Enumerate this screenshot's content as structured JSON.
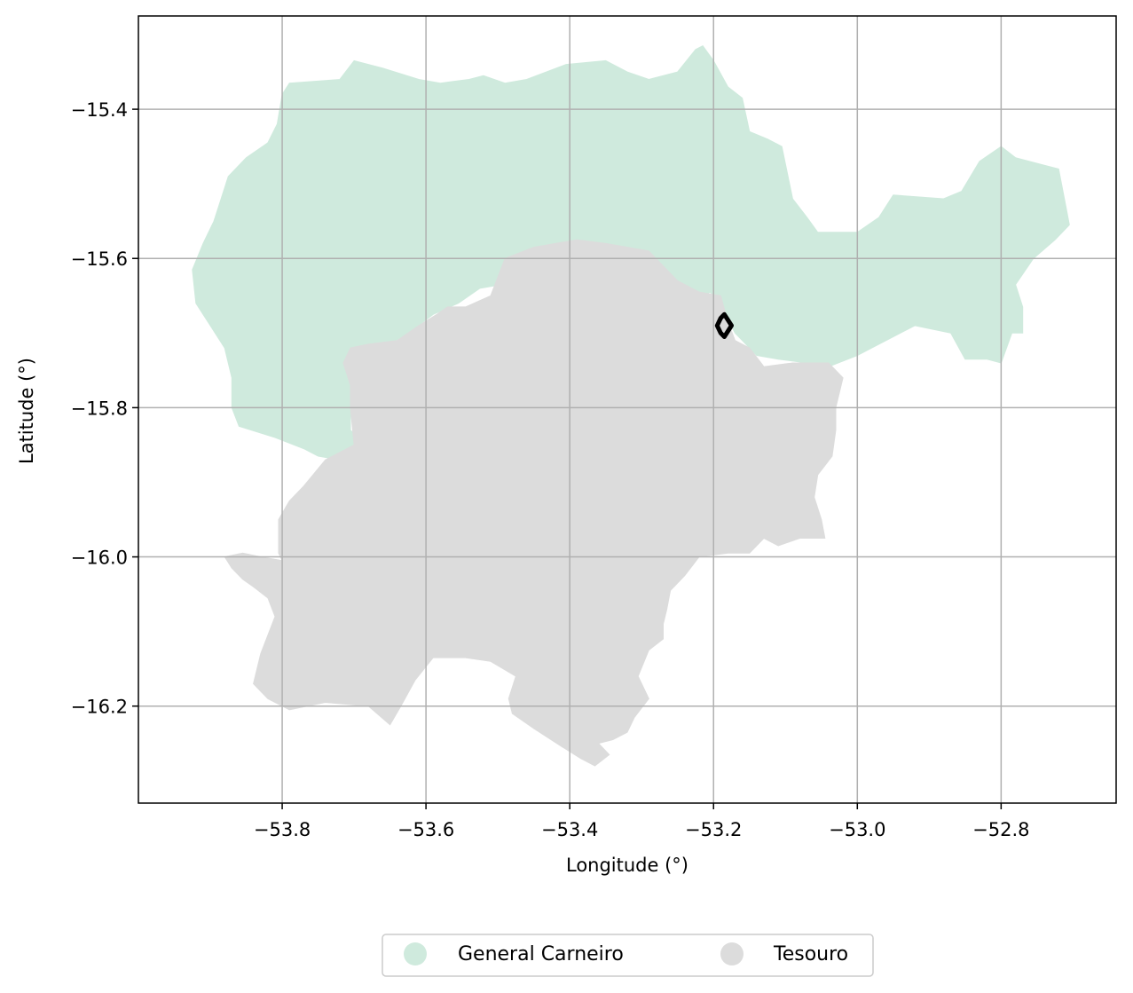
{
  "chart_data": {
    "type": "map",
    "xlabel": "Longitude (°)",
    "ylabel": "Latitude (°)",
    "xlim": [
      -54.0,
      -52.64
    ],
    "ylim": [
      -16.33,
      -15.275
    ],
    "xticks": [
      -53.8,
      -53.6,
      -53.4,
      -53.2,
      -53.0,
      -52.8
    ],
    "xtick_labels": [
      "−53.8",
      "−53.6",
      "−53.4",
      "−53.2",
      "−53.0",
      "−52.8"
    ],
    "yticks": [
      -15.4,
      -15.6,
      -15.8,
      -16.0,
      -16.2
    ],
    "ytick_labels": [
      "−15.4",
      "−15.6",
      "−15.8",
      "−16.0",
      "−16.2"
    ],
    "grid": true,
    "legend_position": "bottom-center",
    "regions": [
      {
        "name": "General Carneiro",
        "color": "#cfeadd",
        "outline": [
          [
            -53.875,
            -15.49
          ],
          [
            -53.85,
            -15.465
          ],
          [
            -53.82,
            -15.445
          ],
          [
            -53.807,
            -15.42
          ],
          [
            -53.8,
            -15.38
          ],
          [
            -53.79,
            -15.365
          ],
          [
            -53.72,
            -15.36
          ],
          [
            -53.7,
            -15.335
          ],
          [
            -53.66,
            -15.345
          ],
          [
            -53.61,
            -15.36
          ],
          [
            -53.58,
            -15.365
          ],
          [
            -53.54,
            -15.36
          ],
          [
            -53.52,
            -15.355
          ],
          [
            -53.49,
            -15.365
          ],
          [
            -53.46,
            -15.36
          ],
          [
            -53.405,
            -15.34
          ],
          [
            -53.35,
            -15.335
          ],
          [
            -53.32,
            -15.35
          ],
          [
            -53.29,
            -15.36
          ],
          [
            -53.25,
            -15.35
          ],
          [
            -53.225,
            -15.32
          ],
          [
            -53.215,
            -15.315
          ],
          [
            -53.2,
            -15.335
          ],
          [
            -53.18,
            -15.37
          ],
          [
            -53.16,
            -15.385
          ],
          [
            -53.15,
            -15.43
          ],
          [
            -53.125,
            -15.44
          ],
          [
            -53.105,
            -15.45
          ],
          [
            -53.09,
            -15.52
          ],
          [
            -53.07,
            -15.545
          ],
          [
            -53.055,
            -15.565
          ],
          [
            -53.0,
            -15.565
          ],
          [
            -52.97,
            -15.545
          ],
          [
            -52.95,
            -15.515
          ],
          [
            -52.88,
            -15.52
          ],
          [
            -52.855,
            -15.51
          ],
          [
            -52.83,
            -15.47
          ],
          [
            -52.8,
            -15.45
          ],
          [
            -52.78,
            -15.465
          ],
          [
            -52.74,
            -15.475
          ],
          [
            -52.72,
            -15.48
          ],
          [
            -52.71,
            -15.53
          ],
          [
            -52.705,
            -15.555
          ],
          [
            -52.725,
            -15.575
          ],
          [
            -52.755,
            -15.6
          ],
          [
            -52.78,
            -15.635
          ],
          [
            -52.77,
            -15.665
          ],
          [
            -52.77,
            -15.7
          ],
          [
            -52.785,
            -15.7
          ],
          [
            -52.8,
            -15.74
          ],
          [
            -52.82,
            -15.735
          ],
          [
            -52.85,
            -15.735
          ],
          [
            -52.87,
            -15.7
          ],
          [
            -52.92,
            -15.69
          ],
          [
            -52.96,
            -15.71
          ],
          [
            -53.0,
            -15.73
          ],
          [
            -53.04,
            -15.745
          ],
          [
            -53.07,
            -15.74
          ],
          [
            -53.11,
            -15.735
          ],
          [
            -53.14,
            -15.73
          ],
          [
            -53.17,
            -15.7
          ],
          [
            -53.195,
            -15.655
          ],
          [
            -53.205,
            -15.645
          ],
          [
            -53.22,
            -15.655
          ],
          [
            -53.25,
            -15.645
          ],
          [
            -53.29,
            -15.63
          ],
          [
            -53.31,
            -15.625
          ],
          [
            -53.34,
            -15.63
          ],
          [
            -53.38,
            -15.628
          ],
          [
            -53.43,
            -15.63
          ],
          [
            -53.465,
            -15.63
          ],
          [
            -53.525,
            -15.64
          ],
          [
            -53.555,
            -15.66
          ],
          [
            -53.59,
            -15.675
          ],
          [
            -53.625,
            -15.7
          ],
          [
            -53.66,
            -15.72
          ],
          [
            -53.68,
            -15.715
          ],
          [
            -53.705,
            -15.72
          ],
          [
            -53.715,
            -15.74
          ],
          [
            -53.705,
            -15.77
          ],
          [
            -53.705,
            -15.83
          ],
          [
            -53.69,
            -15.845
          ],
          [
            -53.66,
            -15.855
          ],
          [
            -53.66,
            -15.87
          ],
          [
            -53.68,
            -15.88
          ],
          [
            -53.695,
            -15.865
          ],
          [
            -53.72,
            -15.87
          ],
          [
            -53.75,
            -15.865
          ],
          [
            -53.77,
            -15.855
          ],
          [
            -53.81,
            -15.84
          ],
          [
            -53.86,
            -15.825
          ],
          [
            -53.87,
            -15.8
          ],
          [
            -53.87,
            -15.76
          ],
          [
            -53.88,
            -15.72
          ],
          [
            -53.9,
            -15.69
          ],
          [
            -53.92,
            -15.66
          ],
          [
            -53.925,
            -15.615
          ],
          [
            -53.91,
            -15.58
          ],
          [
            -53.895,
            -15.55
          ]
        ]
      },
      {
        "name": "Tesouro",
        "color": "#dcdcdc",
        "outline": [
          [
            -53.51,
            -15.65
          ],
          [
            -53.49,
            -15.6
          ],
          [
            -53.45,
            -15.585
          ],
          [
            -53.39,
            -15.575
          ],
          [
            -53.35,
            -15.58
          ],
          [
            -53.29,
            -15.59
          ],
          [
            -53.27,
            -15.61
          ],
          [
            -53.25,
            -15.63
          ],
          [
            -53.22,
            -15.645
          ],
          [
            -53.19,
            -15.65
          ],
          [
            -53.18,
            -15.685
          ],
          [
            -53.17,
            -15.71
          ],
          [
            -53.15,
            -15.72
          ],
          [
            -53.13,
            -15.745
          ],
          [
            -53.09,
            -15.74
          ],
          [
            -53.04,
            -15.74
          ],
          [
            -53.02,
            -15.76
          ],
          [
            -53.03,
            -15.8
          ],
          [
            -53.03,
            -15.83
          ],
          [
            -53.035,
            -15.865
          ],
          [
            -53.055,
            -15.89
          ],
          [
            -53.06,
            -15.92
          ],
          [
            -53.05,
            -15.95
          ],
          [
            -53.045,
            -15.975
          ],
          [
            -53.08,
            -15.975
          ],
          [
            -53.11,
            -15.985
          ],
          [
            -53.13,
            -15.975
          ],
          [
            -53.15,
            -15.995
          ],
          [
            -53.18,
            -15.995
          ],
          [
            -53.22,
            -16.0
          ],
          [
            -53.24,
            -16.025
          ],
          [
            -53.26,
            -16.045
          ],
          [
            -53.265,
            -16.07
          ],
          [
            -53.27,
            -16.09
          ],
          [
            -53.27,
            -16.11
          ],
          [
            -53.29,
            -16.125
          ],
          [
            -53.305,
            -16.16
          ],
          [
            -53.29,
            -16.19
          ],
          [
            -53.31,
            -16.215
          ],
          [
            -53.32,
            -16.235
          ],
          [
            -53.34,
            -16.245
          ],
          [
            -53.36,
            -16.25
          ],
          [
            -53.345,
            -16.265
          ],
          [
            -53.365,
            -16.28
          ],
          [
            -53.385,
            -16.27
          ],
          [
            -53.41,
            -16.255
          ],
          [
            -53.45,
            -16.23
          ],
          [
            -53.48,
            -16.21
          ],
          [
            -53.485,
            -16.19
          ],
          [
            -53.475,
            -16.16
          ],
          [
            -53.51,
            -16.14
          ],
          [
            -53.545,
            -16.135
          ],
          [
            -53.59,
            -16.135
          ],
          [
            -53.615,
            -16.165
          ],
          [
            -53.635,
            -16.2
          ],
          [
            -53.65,
            -16.225
          ],
          [
            -53.68,
            -16.2
          ],
          [
            -53.74,
            -16.195
          ],
          [
            -53.79,
            -16.205
          ],
          [
            -53.82,
            -16.19
          ],
          [
            -53.84,
            -16.17
          ],
          [
            -53.83,
            -16.13
          ],
          [
            -53.81,
            -16.08
          ],
          [
            -53.82,
            -16.055
          ],
          [
            -53.84,
            -16.04
          ],
          [
            -53.855,
            -16.03
          ],
          [
            -53.87,
            -16.015
          ],
          [
            -53.88,
            -16.0
          ],
          [
            -53.855,
            -15.995
          ],
          [
            -53.83,
            -16.0
          ],
          [
            -53.8,
            -16.005
          ],
          [
            -53.805,
            -15.995
          ],
          [
            -53.805,
            -15.95
          ],
          [
            -53.79,
            -15.925
          ],
          [
            -53.77,
            -15.905
          ],
          [
            -53.74,
            -15.87
          ],
          [
            -53.72,
            -15.86
          ],
          [
            -53.7,
            -15.85
          ],
          [
            -53.705,
            -15.8
          ],
          [
            -53.705,
            -15.77
          ],
          [
            -53.715,
            -15.74
          ],
          [
            -53.705,
            -15.72
          ],
          [
            -53.68,
            -15.715
          ],
          [
            -53.64,
            -15.71
          ],
          [
            -53.61,
            -15.69
          ],
          [
            -53.585,
            -15.675
          ],
          [
            -53.57,
            -15.665
          ],
          [
            -53.545,
            -15.665
          ]
        ]
      }
    ],
    "marker": {
      "type": "outline",
      "color": "#000000",
      "points": [
        [
          -53.185,
          -15.675
        ],
        [
          -53.175,
          -15.69
        ],
        [
          -53.185,
          -15.705
        ],
        [
          -53.19,
          -15.7
        ],
        [
          -53.195,
          -15.69
        ],
        [
          -53.19,
          -15.68
        ]
      ]
    },
    "legend": [
      {
        "label": "General Carneiro",
        "color": "#cfeadd"
      },
      {
        "label": "Tesouro",
        "color": "#dcdcdc"
      }
    ]
  }
}
